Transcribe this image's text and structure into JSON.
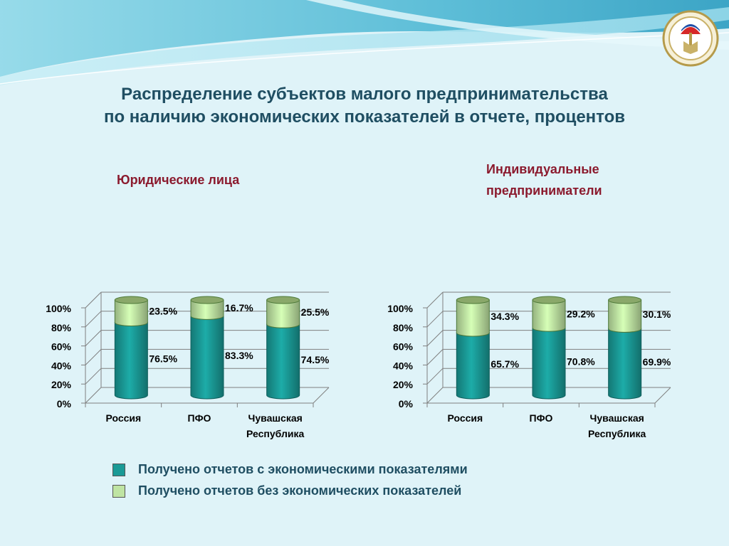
{
  "title_line1": "Распределение субъектов малого предпринимательства",
  "title_line2": "по наличию экономических показателей в отчете, процентов",
  "subtitle_left": "Юридические лица",
  "subtitle_right_line1": "Индивидуальные",
  "subtitle_right_line2": "предприниматели",
  "colors": {
    "with_indicators": "#1a9a96",
    "without_indicators": "#bfe4a3",
    "title": "#1f4e62",
    "subtitle": "#8b1a2e"
  },
  "legend": [
    {
      "label": "Получено отчетов с экономическими показателями"
    },
    {
      "label": "Получено отчетов без экономических показателей"
    }
  ],
  "chart_data": [
    {
      "type": "bar",
      "stacked": "percent",
      "categories": [
        [
          "Россия"
        ],
        [
          "ПФО"
        ],
        [
          "Чувашская",
          "Республика"
        ]
      ],
      "y_ticks": [
        "0%",
        "20%",
        "40%",
        "60%",
        "80%",
        "100%"
      ],
      "ylim": [
        0,
        100
      ],
      "series": [
        {
          "name": "Получено отчетов с экономическими показателями",
          "values": [
            76.5,
            83.3,
            74.5
          ],
          "labels": [
            "76.5%",
            "83.3%",
            "74.5%"
          ]
        },
        {
          "name": "Получено отчетов без экономических показателей",
          "values": [
            23.5,
            16.7,
            25.5
          ],
          "labels": [
            "23.5%",
            "16.7%",
            "25.5%"
          ]
        }
      ]
    },
    {
      "type": "bar",
      "stacked": "percent",
      "categories": [
        [
          "Россия"
        ],
        [
          "ПФО"
        ],
        [
          "Чувашская",
          "Республика"
        ]
      ],
      "y_ticks": [
        "0%",
        "20%",
        "40%",
        "60%",
        "80%",
        "100%"
      ],
      "ylim": [
        0,
        100
      ],
      "series": [
        {
          "name": "Получено отчетов с экономическими показателями",
          "values": [
            65.7,
            70.8,
            69.9
          ],
          "labels": [
            "65.7%",
            "70.8%",
            "69.9%"
          ]
        },
        {
          "name": "Получено отчетов без экономических показателей",
          "values": [
            34.3,
            29.2,
            30.1
          ],
          "labels": [
            "34.3%",
            "29.2%",
            "30.1%"
          ]
        }
      ]
    }
  ]
}
